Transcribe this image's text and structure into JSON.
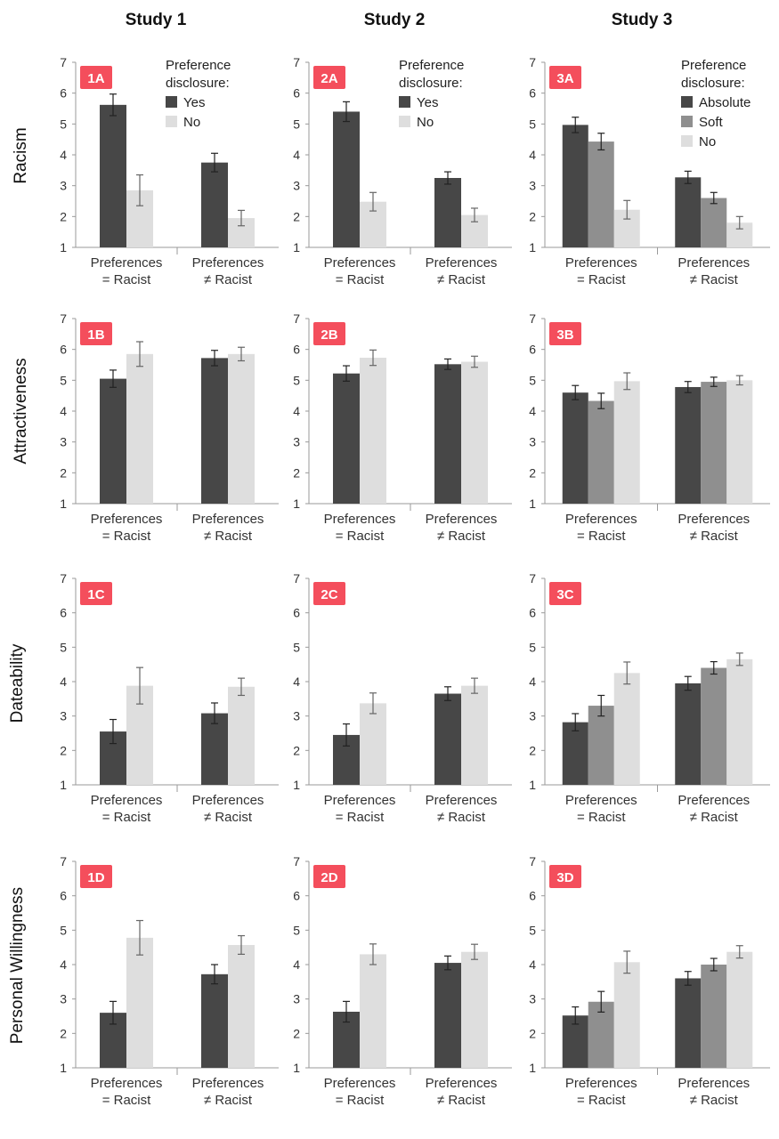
{
  "columns": [
    "Study 1",
    "Study 2",
    "Study 3"
  ],
  "rows": [
    "Racism",
    "Attractiveness",
    "Dateability",
    "Personal Willingness"
  ],
  "colors": {
    "yes": "#474747",
    "no": "#dedede",
    "absolute": "#474747",
    "soft": "#8f8f8f",
    "badge": "#f44e5c"
  },
  "chart_data": [
    {
      "id": "1A",
      "type": "bar",
      "study": "Study 1",
      "ylabel": "Racism",
      "ylim": [
        1,
        7
      ],
      "categories": [
        "Preferences = Racist",
        "Preferences ≠ Racist"
      ],
      "legend_title": "Preference disclosure:",
      "series": [
        {
          "name": "Yes",
          "values": [
            5.62,
            3.75
          ],
          "errors": [
            0.35,
            0.3
          ]
        },
        {
          "name": "No",
          "values": [
            2.85,
            1.95
          ],
          "errors": [
            0.5,
            0.25
          ]
        }
      ]
    },
    {
      "id": "2A",
      "type": "bar",
      "study": "Study 2",
      "ylabel": "Racism",
      "ylim": [
        1,
        7
      ],
      "categories": [
        "Preferences = Racist",
        "Preferences ≠ Racist"
      ],
      "legend_title": "Preference disclosure:",
      "series": [
        {
          "name": "Yes",
          "values": [
            5.4,
            3.25
          ],
          "errors": [
            0.32,
            0.2
          ]
        },
        {
          "name": "No",
          "values": [
            2.48,
            2.05
          ],
          "errors": [
            0.3,
            0.22
          ]
        }
      ]
    },
    {
      "id": "3A",
      "type": "bar",
      "study": "Study 3",
      "ylabel": "Racism",
      "ylim": [
        1,
        7
      ],
      "categories": [
        "Preferences = Racist",
        "Preferences ≠ Racist"
      ],
      "legend_title": "Preference disclosure:",
      "series": [
        {
          "name": "Absolute",
          "values": [
            4.97,
            3.27
          ],
          "errors": [
            0.25,
            0.2
          ]
        },
        {
          "name": "Soft",
          "values": [
            4.43,
            2.6
          ],
          "errors": [
            0.27,
            0.18
          ]
        },
        {
          "name": "No",
          "values": [
            2.22,
            1.8
          ],
          "errors": [
            0.3,
            0.2
          ]
        }
      ]
    },
    {
      "id": "1B",
      "type": "bar",
      "study": "Study 1",
      "ylabel": "Attractiveness",
      "ylim": [
        1,
        7
      ],
      "categories": [
        "Preferences = Racist",
        "Preferences ≠ Racist"
      ],
      "series": [
        {
          "name": "Yes",
          "values": [
            5.05,
            5.72
          ],
          "errors": [
            0.28,
            0.25
          ]
        },
        {
          "name": "No",
          "values": [
            5.85,
            5.85
          ],
          "errors": [
            0.4,
            0.22
          ]
        }
      ]
    },
    {
      "id": "2B",
      "type": "bar",
      "study": "Study 2",
      "ylabel": "Attractiveness",
      "ylim": [
        1,
        7
      ],
      "categories": [
        "Preferences = Racist",
        "Preferences ≠ Racist"
      ],
      "series": [
        {
          "name": "Yes",
          "values": [
            5.22,
            5.52
          ],
          "errors": [
            0.25,
            0.17
          ]
        },
        {
          "name": "No",
          "values": [
            5.73,
            5.6
          ],
          "errors": [
            0.25,
            0.18
          ]
        }
      ]
    },
    {
      "id": "3B",
      "type": "bar",
      "study": "Study 3",
      "ylabel": "Attractiveness",
      "ylim": [
        1,
        7
      ],
      "categories": [
        "Preferences = Racist",
        "Preferences ≠ Racist"
      ],
      "series": [
        {
          "name": "Absolute",
          "values": [
            4.6,
            4.78
          ],
          "errors": [
            0.23,
            0.18
          ]
        },
        {
          "name": "Soft",
          "values": [
            4.33,
            4.95
          ],
          "errors": [
            0.25,
            0.15
          ]
        },
        {
          "name": "No",
          "values": [
            4.97,
            5.0
          ],
          "errors": [
            0.27,
            0.15
          ]
        }
      ]
    },
    {
      "id": "1C",
      "type": "bar",
      "study": "Study 1",
      "ylabel": "Dateability",
      "ylim": [
        1,
        7
      ],
      "categories": [
        "Preferences = Racist",
        "Preferences ≠ Racist"
      ],
      "series": [
        {
          "name": "Yes",
          "values": [
            2.55,
            3.08
          ],
          "errors": [
            0.35,
            0.3
          ]
        },
        {
          "name": "No",
          "values": [
            3.88,
            3.85
          ],
          "errors": [
            0.53,
            0.25
          ]
        }
      ]
    },
    {
      "id": "2C",
      "type": "bar",
      "study": "Study 2",
      "ylabel": "Dateability",
      "ylim": [
        1,
        7
      ],
      "categories": [
        "Preferences = Racist",
        "Preferences ≠ Racist"
      ],
      "series": [
        {
          "name": "Yes",
          "values": [
            2.45,
            3.65
          ],
          "errors": [
            0.32,
            0.2
          ]
        },
        {
          "name": "No",
          "values": [
            3.37,
            3.88
          ],
          "errors": [
            0.3,
            0.22
          ]
        }
      ]
    },
    {
      "id": "3C",
      "type": "bar",
      "study": "Study 3",
      "ylabel": "Dateability",
      "ylim": [
        1,
        7
      ],
      "categories": [
        "Preferences = Racist",
        "Preferences ≠ Racist"
      ],
      "series": [
        {
          "name": "Absolute",
          "values": [
            2.82,
            3.95
          ],
          "errors": [
            0.25,
            0.2
          ]
        },
        {
          "name": "Soft",
          "values": [
            3.3,
            4.4
          ],
          "errors": [
            0.3,
            0.18
          ]
        },
        {
          "name": "No",
          "values": [
            4.25,
            4.65
          ],
          "errors": [
            0.32,
            0.18
          ]
        }
      ]
    },
    {
      "id": "1D",
      "type": "bar",
      "study": "Study 1",
      "ylabel": "Personal Willingness",
      "ylim": [
        1,
        7
      ],
      "categories": [
        "Preferences = Racist",
        "Preferences ≠ Racist"
      ],
      "series": [
        {
          "name": "Yes",
          "values": [
            2.6,
            3.72
          ],
          "errors": [
            0.33,
            0.28
          ]
        },
        {
          "name": "No",
          "values": [
            4.78,
            4.57
          ],
          "errors": [
            0.5,
            0.27
          ]
        }
      ]
    },
    {
      "id": "2D",
      "type": "bar",
      "study": "Study 2",
      "ylabel": "Personal Willingness",
      "ylim": [
        1,
        7
      ],
      "categories": [
        "Preferences = Racist",
        "Preferences ≠ Racist"
      ],
      "series": [
        {
          "name": "Yes",
          "values": [
            2.63,
            4.05
          ],
          "errors": [
            0.3,
            0.2
          ]
        },
        {
          "name": "No",
          "values": [
            4.3,
            4.37
          ],
          "errors": [
            0.3,
            0.22
          ]
        }
      ]
    },
    {
      "id": "3D",
      "type": "bar",
      "study": "Study 3",
      "ylabel": "Personal Willingness",
      "ylim": [
        1,
        7
      ],
      "categories": [
        "Preferences = Racist",
        "Preferences ≠ Racist"
      ],
      "series": [
        {
          "name": "Absolute",
          "values": [
            2.52,
            3.6
          ],
          "errors": [
            0.25,
            0.2
          ]
        },
        {
          "name": "Soft",
          "values": [
            2.92,
            4.0
          ],
          "errors": [
            0.3,
            0.18
          ]
        },
        {
          "name": "No",
          "values": [
            4.07,
            4.37
          ],
          "errors": [
            0.32,
            0.18
          ]
        }
      ]
    }
  ]
}
